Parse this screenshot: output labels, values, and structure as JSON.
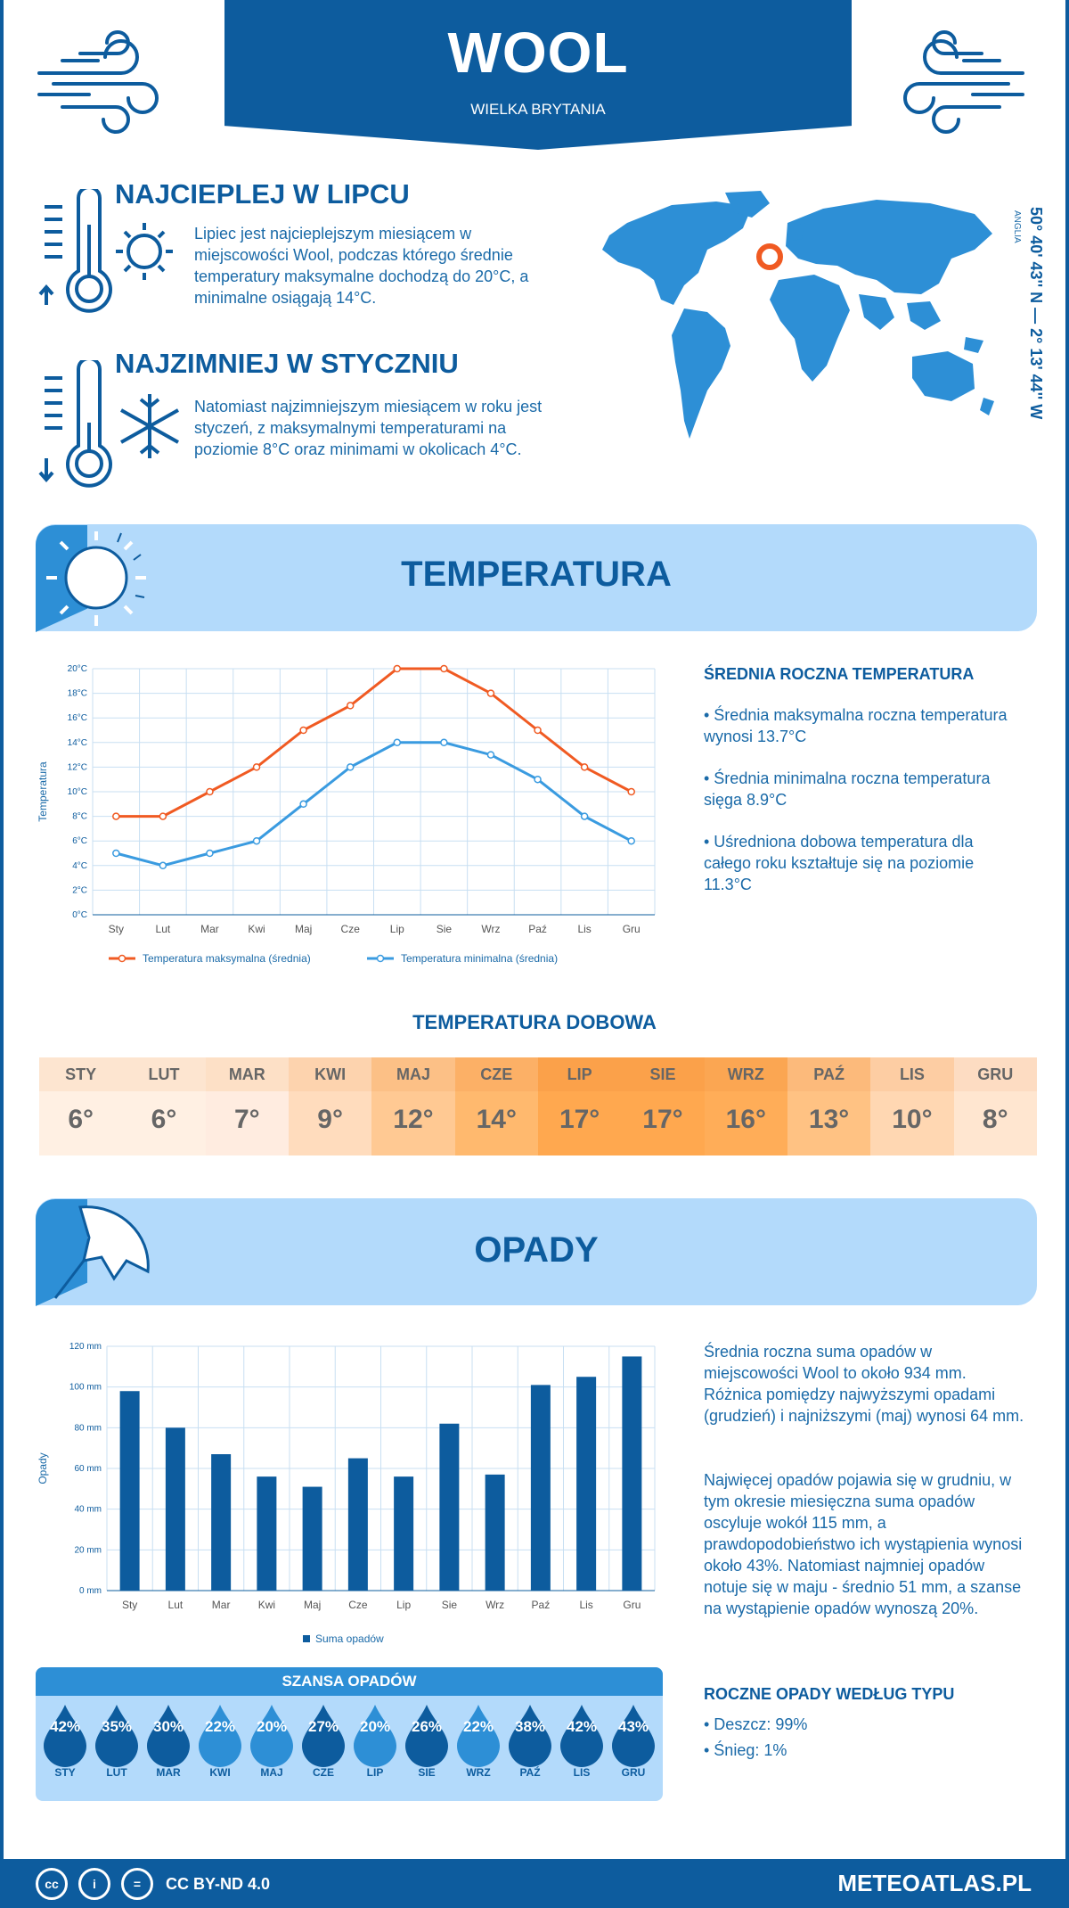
{
  "header": {
    "title": "WOOL",
    "subtitle": "WIELKA BRYTANIA"
  },
  "hottest": {
    "title": "NAJCIEPLEJ W LIPCU",
    "text": "Lipiec jest najcieplejszym miesiącem w miejscowości Wool, podczas którego średnie temperatury maksymalne dochodzą do 20°C, a minimalne osiągają 14°C."
  },
  "coldest": {
    "title": "NAJZIMNIEJ W STYCZNIU",
    "text": "Natomiast najzimniejszym miesiącem w roku jest styczeń, z maksymalnymi temperaturami na poziomie 8°C oraz minimami w okolicach 4°C."
  },
  "location": {
    "coords": "50° 40' 43'' N — 2° 13' 44'' W",
    "region": "ANGLIA"
  },
  "temperature_section": {
    "title": "TEMPERATURA",
    "annual_heading": "ŚREDNIA ROCZNA TEMPERATURA",
    "bullets": [
      "• Średnia maksymalna roczna temperatura wynosi 13.7°C",
      "• Średnia minimalna roczna temperatura sięga 8.9°C",
      "• Uśredniona dobowa temperatura dla całego roku kształtuje się na poziomie 11.3°C"
    ],
    "daily_title": "TEMPERATURA DOBOWA",
    "daily": [
      {
        "month": "STY",
        "value": "6°",
        "bg": "#fff0e3",
        "head": "#fde5d0"
      },
      {
        "month": "LUT",
        "value": "6°",
        "bg": "#fff0e3",
        "head": "#fde5d0"
      },
      {
        "month": "MAR",
        "value": "7°",
        "bg": "#ffece0",
        "head": "#fde0c6"
      },
      {
        "month": "KWI",
        "value": "9°",
        "bg": "#ffdcbd",
        "head": "#fdd3ae"
      },
      {
        "month": "MAJ",
        "value": "12°",
        "bg": "#ffc993",
        "head": "#fcc086"
      },
      {
        "month": "CZE",
        "value": "14°",
        "bg": "#ffb96e",
        "head": "#fcb066"
      },
      {
        "month": "LIP",
        "value": "17°",
        "bg": "#ffa84f",
        "head": "#fba14a"
      },
      {
        "month": "SIE",
        "value": "17°",
        "bg": "#ffa84f",
        "head": "#fba14a"
      },
      {
        "month": "WRZ",
        "value": "16°",
        "bg": "#ffad58",
        "head": "#fba652"
      },
      {
        "month": "PAŹ",
        "value": "13°",
        "bg": "#ffc283",
        "head": "#fcba7b"
      },
      {
        "month": "LIS",
        "value": "10°",
        "bg": "#ffd7b2",
        "head": "#fdcda3"
      },
      {
        "month": "GRU",
        "value": "8°",
        "bg": "#ffe6d0",
        "head": "#fddcc2"
      }
    ]
  },
  "precip_section": {
    "title": "OPADY",
    "para1": "Średnia roczna suma opadów w miejscowości Wool to około 934 mm. Różnica pomiędzy najwyższymi opadami (grudzień) i najniższymi (maj) wynosi 64 mm.",
    "para2": "Najwięcej opadów pojawia się w grudniu, w tym okresie miesięczna suma opadów oscyluje wokół 115 mm, a prawdopodobieństwo ich wystąpienia wynosi około 43%. Natomiast najmniej opadów notuje się w maju - średnio 51 mm, a szanse na wystąpienie opadów wynoszą 20%.",
    "chance_title": "SZANSA OPADÓW",
    "chance": [
      {
        "month": "STY",
        "pct": "42%",
        "color": "#0d5c9e"
      },
      {
        "month": "LUT",
        "pct": "35%",
        "color": "#0d5c9e"
      },
      {
        "month": "MAR",
        "pct": "30%",
        "color": "#0d5c9e"
      },
      {
        "month": "KWI",
        "pct": "22%",
        "color": "#2d8fd6"
      },
      {
        "month": "MAJ",
        "pct": "20%",
        "color": "#2d8fd6"
      },
      {
        "month": "CZE",
        "pct": "27%",
        "color": "#0d5c9e"
      },
      {
        "month": "LIP",
        "pct": "20%",
        "color": "#2d8fd6"
      },
      {
        "month": "SIE",
        "pct": "26%",
        "color": "#0d5c9e"
      },
      {
        "month": "WRZ",
        "pct": "22%",
        "color": "#2d8fd6"
      },
      {
        "month": "PAŹ",
        "pct": "38%",
        "color": "#0d5c9e"
      },
      {
        "month": "LIS",
        "pct": "42%",
        "color": "#0d5c9e"
      },
      {
        "month": "GRU",
        "pct": "43%",
        "color": "#0d5c9e"
      }
    ],
    "type_heading": "ROCZNE OPADY WEDŁUG TYPU",
    "types": [
      "• Deszcz: 99%",
      "• Śnieg: 1%"
    ]
  },
  "chart_data": [
    {
      "type": "line",
      "categories": [
        "Sty",
        "Lut",
        "Mar",
        "Kwi",
        "Maj",
        "Cze",
        "Lip",
        "Sie",
        "Wrz",
        "Paź",
        "Lis",
        "Gru"
      ],
      "ylabel": "Temperatura",
      "ylim": [
        0,
        20
      ],
      "yticks": [
        "0°C",
        "2°C",
        "4°C",
        "6°C",
        "8°C",
        "10°C",
        "12°C",
        "14°C",
        "16°C",
        "18°C",
        "20°C"
      ],
      "series": [
        {
          "name": "Temperatura maksymalna (średnia)",
          "color": "#f05a22",
          "values": [
            8,
            8,
            10,
            12,
            15,
            17,
            20,
            20,
            18,
            15,
            12,
            10
          ]
        },
        {
          "name": "Temperatura minimalna (średnia)",
          "color": "#3a9be0",
          "values": [
            5,
            4,
            5,
            6,
            9,
            12,
            14,
            14,
            13,
            11,
            8,
            6
          ]
        }
      ],
      "grid": true,
      "legend": "bottom"
    },
    {
      "type": "bar",
      "categories": [
        "Sty",
        "Lut",
        "Mar",
        "Kwi",
        "Maj",
        "Cze",
        "Lip",
        "Sie",
        "Wrz",
        "Paź",
        "Lis",
        "Gru"
      ],
      "ylabel": "Opady",
      "ylim": [
        0,
        120
      ],
      "yticks": [
        "0 mm",
        "20 mm",
        "40 mm",
        "60 mm",
        "80 mm",
        "100 mm",
        "120 mm"
      ],
      "series": [
        {
          "name": "Suma opadów",
          "color": "#0d5c9e",
          "values": [
            98,
            80,
            67,
            56,
            51,
            65,
            56,
            82,
            57,
            101,
            105,
            115
          ]
        }
      ],
      "grid": true,
      "legend": "bottom"
    }
  ],
  "footer": {
    "license": "CC BY-ND 4.0",
    "site": "METEOATLAS.PL"
  }
}
